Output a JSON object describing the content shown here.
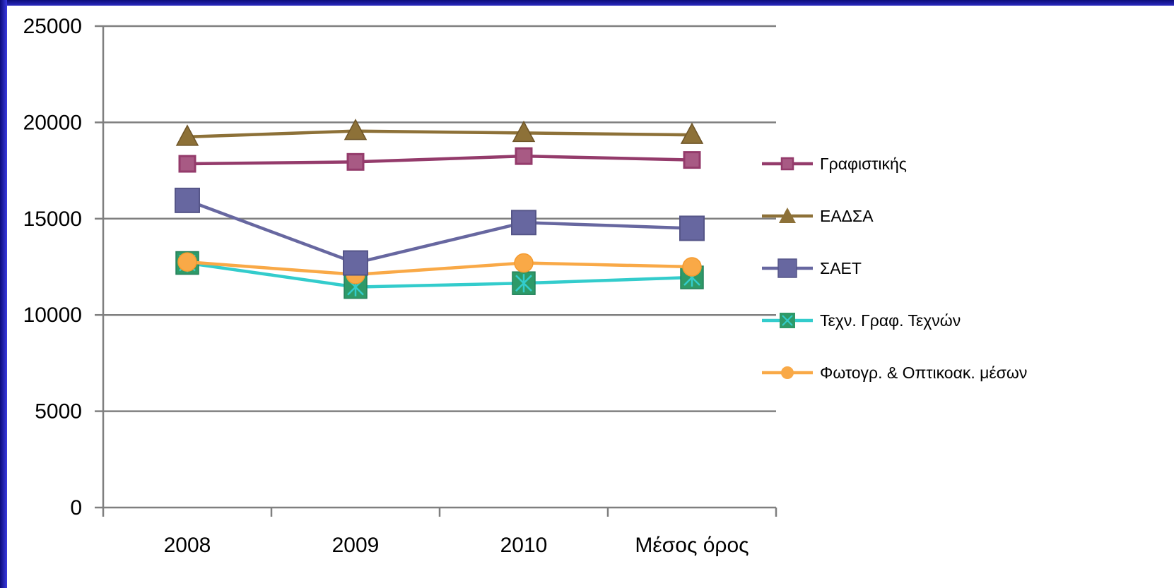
{
  "colors": {
    "background_frame": "#1a1aa8",
    "plot_background": "#ffffff",
    "gridline": "#7f7f7f"
  },
  "chart_data": {
    "type": "line",
    "title": "",
    "xlabel": "",
    "ylabel": "",
    "categories": [
      "2008",
      "2009",
      "2010",
      "Μέσος όρος"
    ],
    "ylim": [
      0,
      25000
    ],
    "yticks": [
      "0",
      "5000",
      "10000",
      "15000",
      "20000",
      "25000"
    ],
    "grid": true,
    "legend_position": "right",
    "series": [
      {
        "name": "Γραφιστικής",
        "color": "#943b6b",
        "marker": "square-small",
        "values": [
          17850,
          17950,
          18250,
          18050
        ]
      },
      {
        "name": "ΕΑΔΣΑ",
        "color": "#8d7138",
        "marker": "triangle",
        "values": [
          19250,
          19550,
          19450,
          19350
        ]
      },
      {
        "name": "ΣΑΕΤ",
        "color": "#6767a0",
        "marker": "square-large",
        "values": [
          15950,
          12700,
          14800,
          14500
        ]
      },
      {
        "name": "Τεχν. Γραφ. Τεχνών",
        "color": "#33cccc",
        "marker": "star-square",
        "values": [
          12700,
          11450,
          11650,
          11950
        ]
      },
      {
        "name": "Φωτογρ. & Οπτικοακ. μέσων",
        "color": "#f9a947",
        "marker": "circle",
        "values": [
          12750,
          12100,
          12700,
          12500
        ]
      }
    ]
  }
}
